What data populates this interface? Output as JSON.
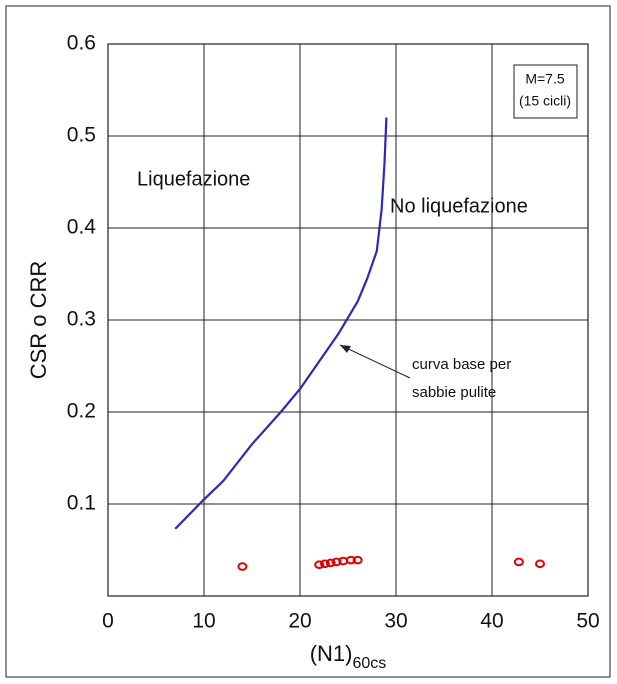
{
  "chart_data": {
    "type": "line",
    "ylabel": "CSR o CRR",
    "xlabel": "(N1)",
    "xlabel_subscript": "60cs",
    "xlim": [
      0,
      50
    ],
    "xticks": [
      0,
      10,
      20,
      30,
      40,
      50
    ],
    "ylim": [
      0,
      0.6
    ],
    "yticks": [
      0.1,
      0.2,
      0.3,
      0.4,
      0.5,
      0.6
    ],
    "grid": true,
    "curve": {
      "color": "#2b2bb0",
      "x": [
        7,
        10,
        12,
        15,
        18,
        20,
        22,
        24,
        26,
        27,
        28,
        28.5,
        28.8,
        29
      ],
      "values": [
        0.073,
        0.105,
        0.125,
        0.165,
        0.2,
        0.225,
        0.255,
        0.285,
        0.32,
        0.345,
        0.375,
        0.42,
        0.47,
        0.52
      ]
    },
    "points": {
      "color": "#e00000",
      "x": [
        14,
        22,
        22.6,
        23.2,
        23.8,
        24.5,
        25.3,
        26,
        42.8,
        45
      ],
      "values": [
        0.032,
        0.034,
        0.035,
        0.036,
        0.037,
        0.038,
        0.039,
        0.039,
        0.037,
        0.035
      ]
    },
    "annotations": [
      "Liquefazione",
      "No liquefazione"
    ],
    "arrow_note": [
      "curva base per",
      "sabbie pulite"
    ],
    "box_note": [
      "M=7.5",
      "(15 cicli)"
    ]
  }
}
